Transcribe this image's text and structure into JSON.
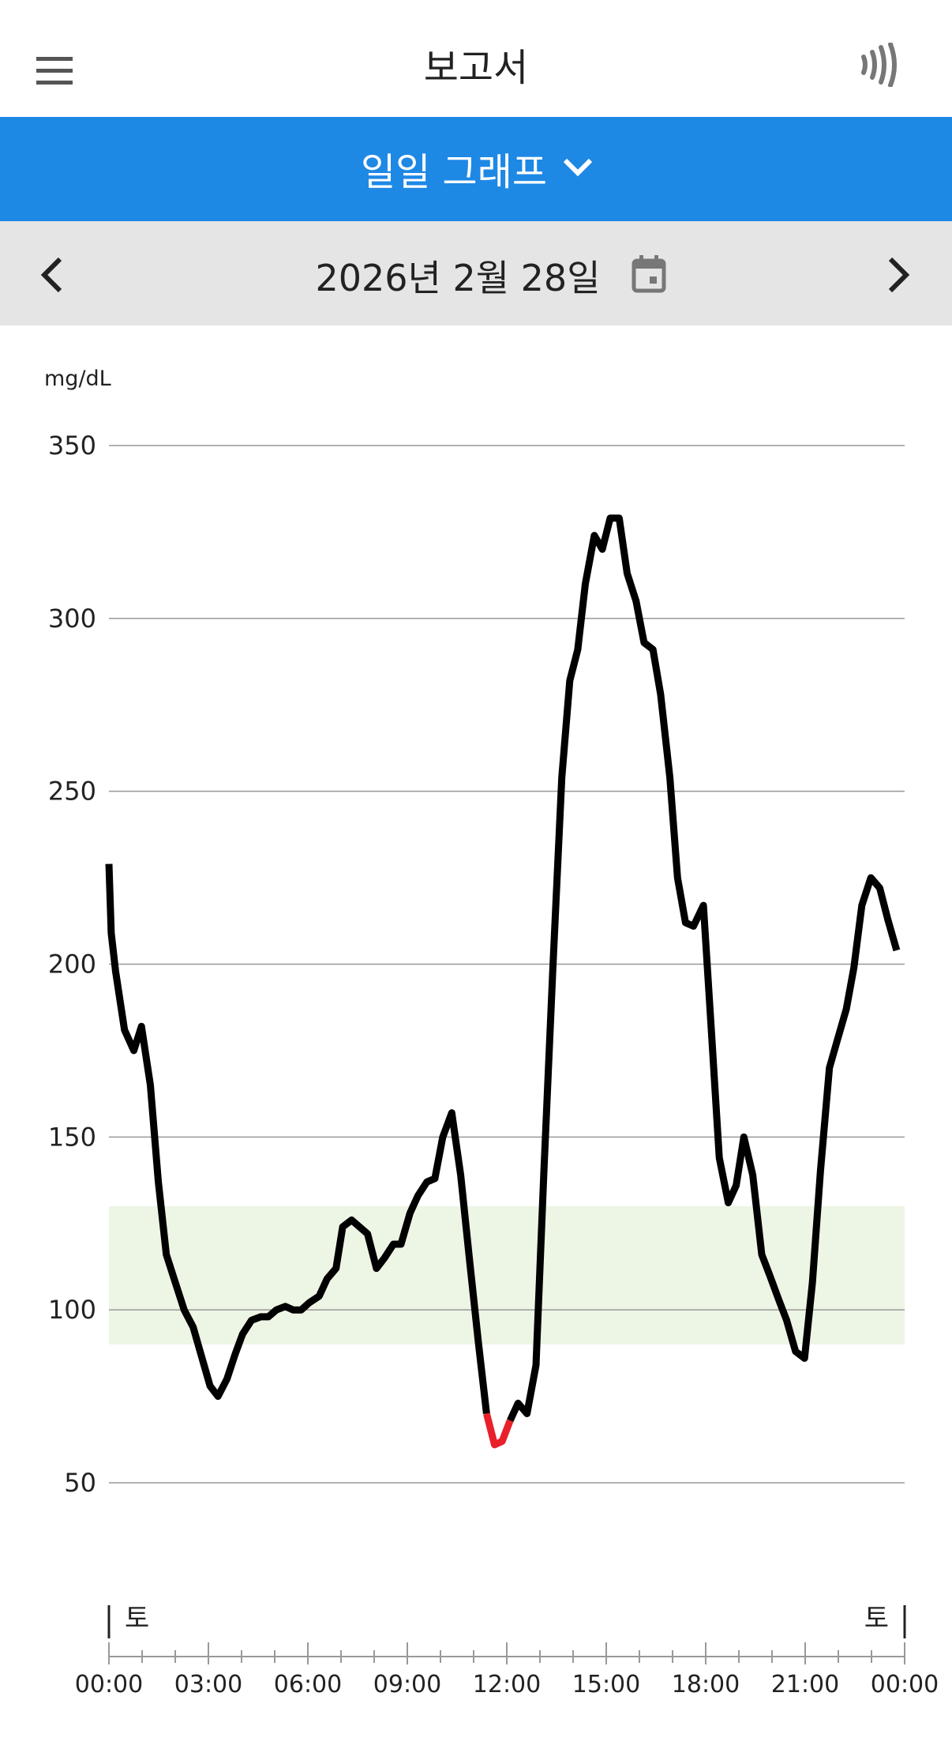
{
  "header": {
    "title": "보고서"
  },
  "tab": {
    "label": "일일 그래프"
  },
  "date_bar": {
    "date": "2026년 2월 28일"
  },
  "chart_data": {
    "type": "line",
    "y_unit": "mg/dL",
    "ylim": [
      50,
      350
    ],
    "yticks": [
      50,
      100,
      150,
      200,
      250,
      300,
      350
    ],
    "grid": true,
    "target_range": [
      90,
      130
    ],
    "target_color": "#edf5e5",
    "xlim": [
      0,
      24
    ],
    "xticks": [
      {
        "value": 0,
        "label": "00:00"
      },
      {
        "value": 3,
        "label": "03:00"
      },
      {
        "value": 6,
        "label": "06:00"
      },
      {
        "value": 9,
        "label": "09:00"
      },
      {
        "value": 12,
        "label": "12:00"
      },
      {
        "value": 15,
        "label": "15:00"
      },
      {
        "value": 18,
        "label": "18:00"
      },
      {
        "value": 21,
        "label": "21:00"
      },
      {
        "value": 24,
        "label": "00:00"
      }
    ],
    "xminor_ticks": [
      1,
      2,
      4,
      5,
      7,
      8,
      10,
      11,
      13,
      14,
      16,
      17,
      19,
      20,
      22,
      23
    ],
    "day_labels": [
      "토",
      "토"
    ],
    "x": [
      0,
      0.07,
      0.2,
      0.47,
      0.75,
      0.98,
      1.25,
      1.49,
      1.73,
      2.0,
      2.27,
      2.54,
      2.81,
      3.05,
      3.29,
      3.56,
      3.8,
      4.03,
      4.3,
      4.58,
      4.81,
      5.05,
      5.32,
      5.56,
      5.8,
      6.03,
      6.34,
      6.58,
      6.85,
      7.05,
      7.32,
      7.56,
      7.8,
      8.07,
      8.31,
      8.58,
      8.81,
      9.08,
      9.32,
      9.59,
      9.83,
      10.07,
      10.34,
      10.61,
      10.88,
      11.15,
      11.39,
      11.63,
      11.86,
      12.1,
      12.34,
      12.61,
      12.88,
      13.12,
      13.39,
      13.66,
      13.9,
      14.14,
      14.37,
      14.64,
      14.88,
      15.12,
      15.39,
      15.63,
      15.9,
      16.14,
      16.41,
      16.64,
      16.92,
      17.15,
      17.39,
      17.63,
      17.93,
      18.17,
      18.41,
      18.68,
      18.92,
      19.15,
      19.42,
      19.69,
      19.93,
      20.2,
      20.44,
      20.71,
      20.98,
      21.22,
      21.46,
      21.73,
      21.97,
      22.24,
      22.47,
      22.71,
      22.98,
      23.25,
      23.49,
      23.76
    ],
    "series": [
      {
        "color": "#000000",
        "values": [
          229,
          209,
          198,
          181,
          175,
          182,
          165,
          137,
          116,
          108,
          100,
          95,
          86,
          78,
          75,
          80,
          87,
          93,
          97,
          98,
          98,
          100,
          101,
          100,
          100,
          102,
          104,
          109,
          112,
          124,
          126,
          124,
          122,
          112,
          115,
          119,
          119,
          128,
          133,
          137,
          138,
          150,
          157,
          139,
          114,
          90,
          70,
          null,
          null,
          68,
          73,
          70,
          84,
          140,
          199,
          254,
          282,
          291,
          310,
          324,
          320,
          329,
          329,
          313,
          305,
          293,
          291,
          278,
          254,
          225,
          212,
          211,
          217,
          181,
          144,
          131,
          136,
          150,
          139,
          116,
          110,
          103,
          97,
          88,
          86,
          108,
          140,
          170,
          178,
          187,
          199,
          217,
          225,
          222,
          213,
          204
        ]
      },
      {
        "color": "#e8202a",
        "values": [
          null,
          null,
          null,
          null,
          null,
          null,
          null,
          null,
          null,
          null,
          null,
          null,
          null,
          null,
          null,
          null,
          null,
          null,
          null,
          null,
          null,
          null,
          null,
          null,
          null,
          null,
          null,
          null,
          null,
          null,
          null,
          null,
          null,
          null,
          null,
          null,
          null,
          null,
          null,
          null,
          null,
          null,
          null,
          null,
          null,
          null,
          70,
          61,
          62,
          68,
          null,
          null,
          null,
          null,
          null,
          null,
          null,
          null,
          null,
          null,
          null,
          null,
          null,
          null,
          null,
          null,
          null,
          null,
          null,
          null,
          null,
          null,
          null,
          null,
          null,
          null,
          null,
          null,
          null,
          null,
          null,
          null,
          null,
          null,
          null,
          null,
          null,
          null,
          null,
          null,
          null,
          null,
          null,
          null,
          null,
          null
        ]
      }
    ]
  }
}
